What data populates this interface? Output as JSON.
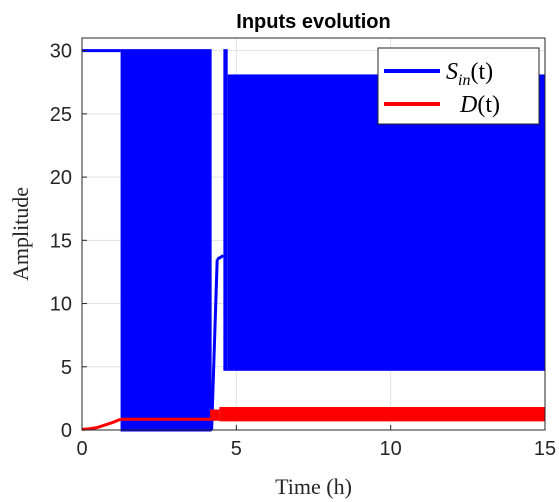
{
  "chart_data": {
    "type": "line",
    "title": "Inputs evolution",
    "xlabel": "Time (h)",
    "ylabel": "Amplitude",
    "xlim": [
      0,
      15
    ],
    "ylim": [
      0,
      31
    ],
    "xticks": [
      0,
      5,
      10,
      15
    ],
    "xtick_labels": [
      "0",
      "5",
      "10",
      "15"
    ],
    "yticks": [
      0,
      5,
      10,
      15,
      20,
      25,
      30
    ],
    "ytick_labels": [
      "0",
      "5",
      "10",
      "15",
      "20",
      "25",
      "30"
    ],
    "grid": true,
    "legend_position": "top-right",
    "series": [
      {
        "name": "S_in(t)",
        "legend_main": "S",
        "legend_sub": "in",
        "legend_tail": "(t)",
        "color": "#0000ff",
        "segments": [
          {
            "kind": "line",
            "x": [
              0,
              1.25
            ],
            "y": [
              30,
              30
            ]
          },
          {
            "kind": "band",
            "x": [
              1.25,
              4.2
            ],
            "low": 0,
            "high": 30
          },
          {
            "kind": "line",
            "x": [
              4.2,
              4.38
            ],
            "y": [
              0,
              13.5
            ]
          },
          {
            "kind": "line",
            "x": [
              4.38,
              4.58
            ],
            "y": [
              13.5,
              13.8
            ]
          },
          {
            "kind": "band",
            "x": [
              4.58,
              4.72
            ],
            "low": 4.8,
            "high": 30
          },
          {
            "kind": "band",
            "x": [
              4.72,
              15
            ],
            "low": 4.8,
            "high": 28
          }
        ]
      },
      {
        "name": "D(t)",
        "legend_main": "D",
        "legend_sub": "",
        "legend_tail": "(t)",
        "color": "#ff0000",
        "segments": [
          {
            "kind": "line",
            "x": [
              0,
              0.25,
              0.5,
              0.75,
              1.0,
              1.25
            ],
            "y": [
              0.05,
              0.1,
              0.2,
              0.4,
              0.6,
              0.85
            ]
          },
          {
            "kind": "line",
            "x": [
              1.25,
              4.15
            ],
            "y": [
              0.85,
              0.85
            ]
          },
          {
            "kind": "band",
            "x": [
              4.15,
              4.45
            ],
            "low": 0.85,
            "high": 1.5
          },
          {
            "kind": "band",
            "x": [
              4.45,
              15
            ],
            "low": 0.8,
            "high": 1.7
          }
        ]
      }
    ]
  }
}
